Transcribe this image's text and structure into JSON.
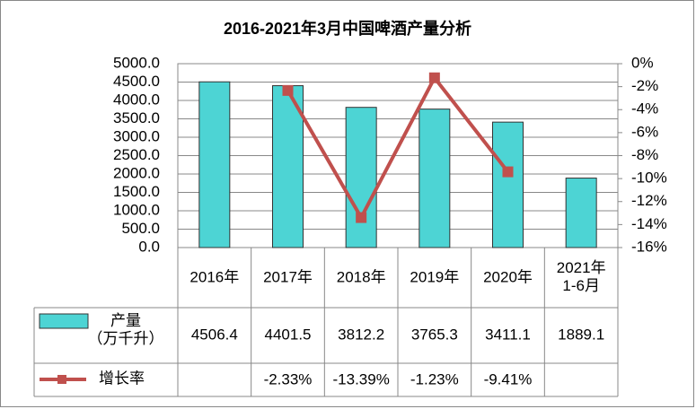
{
  "chart_data": {
    "type": "bar",
    "title": "2016-2021年3月中国啤酒产量分析",
    "categories": [
      "2016年",
      "2017年",
      "2018年",
      "2019年",
      "2020年",
      "2021年\n1-6月"
    ],
    "series": [
      {
        "name": "产量\n（万千升）",
        "type": "bar",
        "color": "#4dd4d4",
        "values": [
          4506.4,
          4401.5,
          3812.2,
          3765.3,
          3411.1,
          1889.1
        ]
      },
      {
        "name": "增长率",
        "type": "line",
        "axis": "y2",
        "color": "#c0504d",
        "values": [
          null,
          -2.33,
          -13.39,
          -1.23,
          -9.41,
          null
        ],
        "value_labels": [
          null,
          "-2.33%",
          "-13.39%",
          "-1.23%",
          "-9.41%",
          null
        ]
      }
    ],
    "ylim": [
      0,
      5000
    ],
    "yticks": [
      {
        "value": 0,
        "label": "0.0"
      },
      {
        "value": 500,
        "label": "500.0"
      },
      {
        "value": 1000,
        "label": "1000.0"
      },
      {
        "value": 1500,
        "label": "1500.0"
      },
      {
        "value": 2000,
        "label": "2000.0"
      },
      {
        "value": 2500,
        "label": "2500.0"
      },
      {
        "value": 3000,
        "label": "3000.0"
      },
      {
        "value": 3500,
        "label": "3500.0"
      },
      {
        "value": 4000,
        "label": "4000.0"
      },
      {
        "value": 4500,
        "label": "4500.0"
      },
      {
        "value": 5000,
        "label": "5000.0"
      }
    ],
    "y2lim": [
      -16,
      0
    ],
    "y2ticks": [
      {
        "value": 0,
        "label": "0%"
      },
      {
        "value": -2,
        "label": "-2%"
      },
      {
        "value": -4,
        "label": "-4%"
      },
      {
        "value": -6,
        "label": "-6%"
      },
      {
        "value": -8,
        "label": "-8%"
      },
      {
        "value": -10,
        "label": "-10%"
      },
      {
        "value": -12,
        "label": "-12%"
      },
      {
        "value": -14,
        "label": "-14%"
      },
      {
        "value": -16,
        "label": "-16%"
      }
    ],
    "grid": true
  }
}
